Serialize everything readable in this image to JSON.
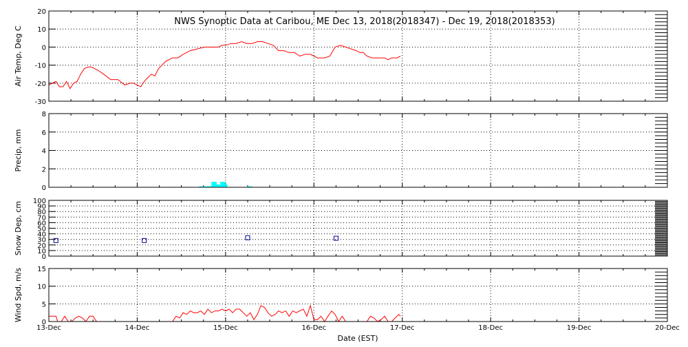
{
  "title": "NWS Synoptic Data at Caribou, ME    Dec 13, 2018(2018347) - Dec 19, 2018(2018353)",
  "xlabel": "Date (EST)",
  "x_ticks": [
    "13-Dec",
    "14-Dec",
    "15-Dec",
    "16-Dec",
    "17-Dec",
    "18-Dec",
    "19-Dec",
    "20-Dec"
  ],
  "colors": {
    "temp": "#ff0000",
    "precip": "#00ffff",
    "snow": "#00008b",
    "wind": "#ff0000",
    "axes": "#000000"
  },
  "chart_data": [
    {
      "type": "line",
      "ylabel": "Air Temp, Deg C",
      "ylim": [
        -30,
        20
      ],
      "yticks": [
        -30,
        -20,
        -10,
        0,
        10,
        20
      ],
      "xlim_days": [
        0,
        7
      ],
      "grid": true,
      "series": [
        {
          "x": [
            0,
            0.04,
            0.08,
            0.12,
            0.16,
            0.2,
            0.24,
            0.28,
            0.32,
            0.36,
            0.4,
            0.44,
            0.48,
            0.52,
            0.56,
            0.62,
            0.7,
            0.78,
            0.86,
            0.92,
            0.96,
            1.0,
            1.04,
            1.08,
            1.12,
            1.16,
            1.2,
            1.24,
            1.28,
            1.32,
            1.36,
            1.4,
            1.46,
            1.52,
            1.6,
            1.68,
            1.76,
            1.84,
            1.92,
            1.96,
            2.0,
            2.06,
            2.12,
            2.18,
            2.24,
            2.3,
            2.36,
            2.42,
            2.48,
            2.54,
            2.6,
            2.66,
            2.72,
            2.78,
            2.84,
            2.9,
            2.96,
            3.0,
            3.04,
            3.08,
            3.12,
            3.18,
            3.24,
            3.3,
            3.36,
            3.42,
            3.48,
            3.52,
            3.56,
            3.6,
            3.66,
            3.72,
            3.76,
            3.8,
            3.84,
            3.88,
            3.94,
            3.98
          ],
          "y": [
            -21,
            -20,
            -19,
            -22,
            -22,
            -19,
            -23,
            -20,
            -19,
            -15,
            -12,
            -11,
            -11,
            -12,
            -13,
            -15,
            -18,
            -18,
            -21,
            -20,
            -20,
            -21,
            -22,
            -19,
            -17,
            -15,
            -16,
            -12,
            -10,
            -8,
            -7,
            -6,
            -6,
            -4,
            -2,
            -1,
            0,
            0,
            0,
            1,
            1,
            2,
            2,
            3,
            2,
            2,
            3,
            3,
            2,
            1,
            -2,
            -2,
            -3,
            -3,
            -5,
            -4,
            -4,
            -5,
            -6,
            -6,
            -6,
            -5,
            0,
            1,
            0,
            -1,
            -2,
            -3,
            -3,
            -5,
            -6,
            -6,
            -6,
            -6,
            -7,
            -6,
            -6,
            -5
          ]
        }
      ]
    },
    {
      "type": "bar",
      "ylabel": "Precip, mm",
      "ylim": [
        0,
        8
      ],
      "yticks": [
        0,
        2,
        4,
        6,
        8
      ],
      "xlim_days": [
        0,
        7
      ],
      "grid": true,
      "bars": [
        {
          "x0": 1.7,
          "x1": 1.84,
          "value": 0.1
        },
        {
          "x0": 1.84,
          "x1": 1.9,
          "value": 0.6
        },
        {
          "x0": 1.9,
          "x1": 1.94,
          "value": 0.3
        },
        {
          "x0": 1.94,
          "x1": 2.0,
          "value": 0.6
        },
        {
          "x0": 2.0,
          "x1": 2.02,
          "value": 0.3
        },
        {
          "x0": 2.24,
          "x1": 2.3,
          "value": 0.1
        }
      ]
    },
    {
      "type": "scatter",
      "ylabel": "Snow Dep, cm",
      "ylim": [
        0,
        100
      ],
      "yticks": [
        0,
        10,
        20,
        30,
        40,
        50,
        60,
        70,
        80,
        90,
        100
      ],
      "xlim_days": [
        0,
        7
      ],
      "grid": true,
      "points": [
        {
          "x": 0.08,
          "y": 28
        },
        {
          "x": 1.08,
          "y": 28
        },
        {
          "x": 2.25,
          "y": 33
        },
        {
          "x": 3.25,
          "y": 32
        }
      ]
    },
    {
      "type": "line",
      "ylabel": "Wind Spd, m/s",
      "ylim": [
        0,
        15
      ],
      "yticks": [
        0,
        5,
        10,
        15
      ],
      "xlim_days": [
        0,
        7
      ],
      "grid": true,
      "series": [
        {
          "x": [
            0,
            0.04,
            0.08,
            0.1,
            0.14,
            0.18,
            0.22,
            0.26,
            0.3,
            0.34,
            0.38,
            0.42,
            0.46,
            0.5,
            0.54,
            0.58,
            0.62,
            0.7,
            0.8,
            0.9,
            1.0,
            1.1,
            1.2,
            1.3,
            1.4,
            1.44,
            1.48,
            1.52,
            1.56,
            1.6,
            1.64,
            1.68,
            1.72,
            1.76,
            1.8,
            1.84,
            1.88,
            1.92,
            1.96,
            2.0,
            2.04,
            2.08,
            2.12,
            2.16,
            2.2,
            2.24,
            2.28,
            2.32,
            2.36,
            2.4,
            2.44,
            2.48,
            2.52,
            2.56,
            2.6,
            2.64,
            2.68,
            2.72,
            2.76,
            2.8,
            2.84,
            2.88,
            2.92,
            2.96,
            3.0,
            3.04,
            3.08,
            3.12,
            3.16,
            3.2,
            3.24,
            3.28,
            3.32,
            3.36,
            3.4,
            3.44,
            3.48,
            3.52,
            3.56,
            3.6,
            3.64,
            3.68,
            3.72,
            3.76,
            3.8,
            3.84,
            3.88,
            3.92,
            3.96,
            3.98
          ],
          "y": [
            1.5,
            1.5,
            1.5,
            0,
            0,
            1.5,
            0,
            0,
            1,
            1.5,
            1,
            0,
            1.5,
            1.5,
            0,
            0,
            0,
            0,
            0,
            0,
            0,
            0,
            0,
            0,
            0,
            1.5,
            1,
            2.5,
            2,
            3,
            2.5,
            2.5,
            3,
            2,
            3.5,
            2.5,
            3,
            3,
            3.5,
            3,
            3.5,
            2.5,
            3.5,
            3.5,
            2.5,
            1.5,
            2.5,
            0.5,
            2,
            4.5,
            4,
            2.5,
            1.5,
            2,
            3,
            2.5,
            3,
            1.5,
            3,
            2.5,
            3,
            3.5,
            1.5,
            4.5,
            0.5,
            0.5,
            1.5,
            0,
            1.5,
            3,
            2,
            0,
            1.5,
            0,
            0,
            0,
            0,
            0,
            0,
            0,
            1.5,
            1,
            0,
            0.5,
            1.5,
            0,
            0,
            1,
            2,
            1.5
          ]
        }
      ]
    }
  ]
}
